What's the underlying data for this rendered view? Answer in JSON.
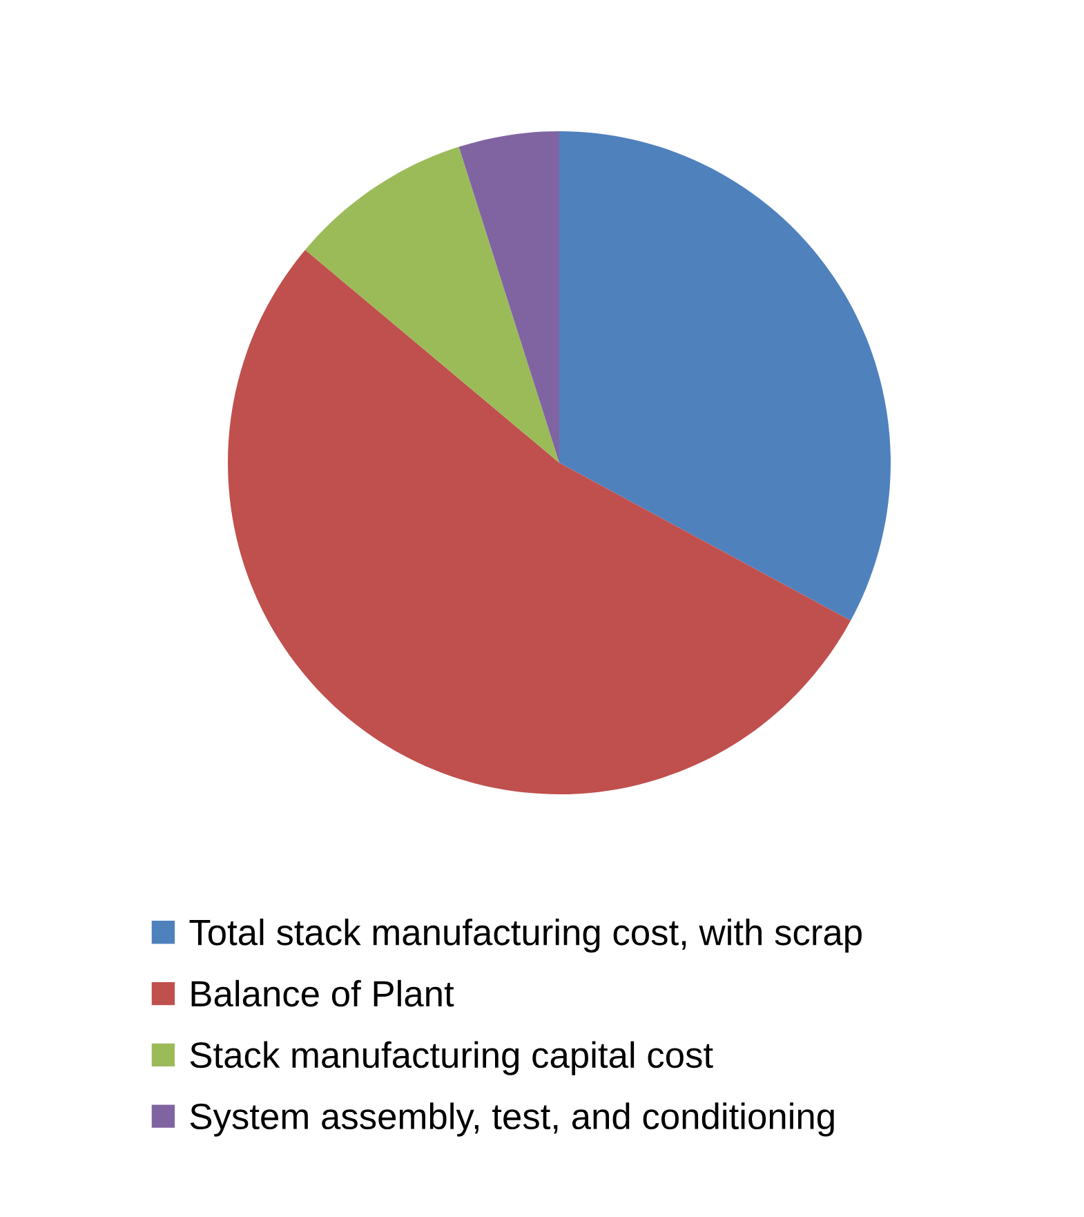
{
  "chart_data": {
    "type": "pie",
    "categories": [
      "Total stack manufacturing cost, with scrap",
      "Balance of Plant",
      "Stack manufacturing capital cost",
      "System assembly, test, and conditioning"
    ],
    "values": [
      32.9,
      53.2,
      9.0,
      4.9
    ],
    "colors": [
      "#4f81bd",
      "#c0504d",
      "#9bbb59",
      "#8064a2"
    ],
    "legend": "bottom"
  }
}
